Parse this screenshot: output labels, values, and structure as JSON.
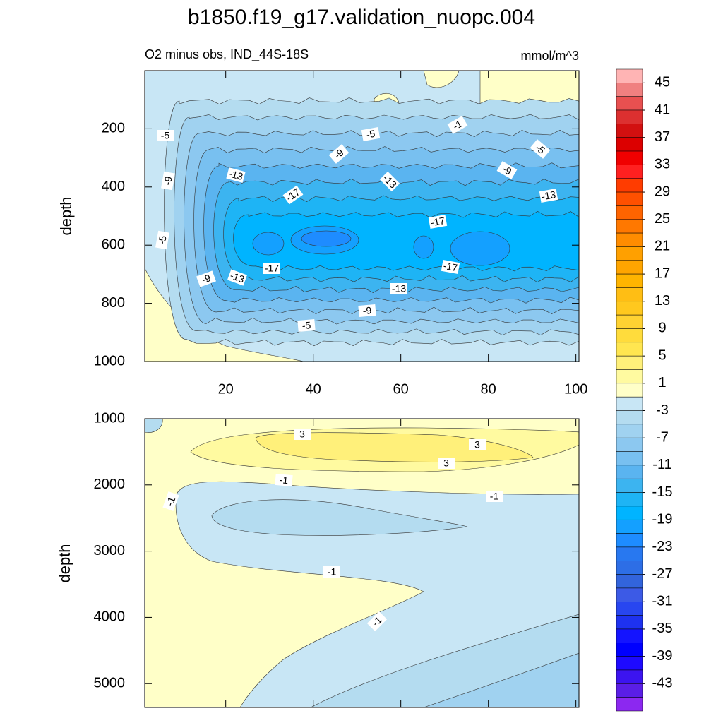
{
  "title": "b1850.f19_g17.validation_nuopc.004",
  "chart_data": [
    {
      "type": "contour",
      "subtitle": "O2 minus obs, IND_44S-18S",
      "units": "mmol/m^3",
      "ylabel": "depth",
      "xlim": [
        1.5,
        100.7
      ],
      "xticks": [
        20,
        40,
        60,
        80,
        100
      ],
      "ylim": [
        0,
        1000
      ],
      "yticks": [
        200,
        400,
        600,
        800,
        1000
      ],
      "contour_labels": [
        -5,
        -9,
        -5,
        -9,
        -13,
        -17,
        -13,
        -17,
        -9,
        -5,
        -13,
        -13,
        -9,
        -5,
        -17,
        -17,
        -1,
        -9,
        -5,
        -13
      ]
    },
    {
      "type": "contour",
      "ylabel": "depth",
      "xlim": [
        1.5,
        100.7
      ],
      "ylim": [
        1000,
        5360
      ],
      "yticks": [
        1000,
        2000,
        3000,
        4000,
        5000
      ],
      "contour_labels": [
        3,
        3,
        3,
        -1,
        -1,
        -1,
        -1,
        -1
      ]
    }
  ],
  "colorbar": {
    "ticks": [
      45,
      41,
      37,
      33,
      29,
      25,
      21,
      17,
      13,
      9,
      5,
      1,
      -3,
      -7,
      -11,
      -15,
      -19,
      -23,
      -27,
      -31,
      -35,
      -39,
      -43
    ],
    "colors": [
      "#ffb4b4",
      "#f08080",
      "#e85050",
      "#dc3030",
      "#d21010",
      "#dc0000",
      "#f00000",
      "#ff2020",
      "#ff3c00",
      "#ff5000",
      "#ff6400",
      "#ff7800",
      "#ff8c00",
      "#ffa000",
      "#ffa500",
      "#ffb400",
      "#ffbe14",
      "#ffc81e",
      "#ffd232",
      "#ffdc3c",
      "#ffe650",
      "#fff07a",
      "#fffaa0",
      "#ffffc8",
      "#c8e6f5",
      "#b4dcf0",
      "#a0d2f0",
      "#8cc8f0",
      "#78c0f0",
      "#5ab4f0",
      "#3cb4f0",
      "#1eb4f5",
      "#00b4ff",
      "#14a0ff",
      "#1e8cff",
      "#2878f0",
      "#2d6ee6",
      "#3264dc",
      "#3c5ae6",
      "#2846f0",
      "#1e32f0",
      "#1414ff",
      "#0000ff",
      "#1e0aff",
      "#3c14f0",
      "#5a1ee6",
      "#8c28f0"
    ]
  }
}
